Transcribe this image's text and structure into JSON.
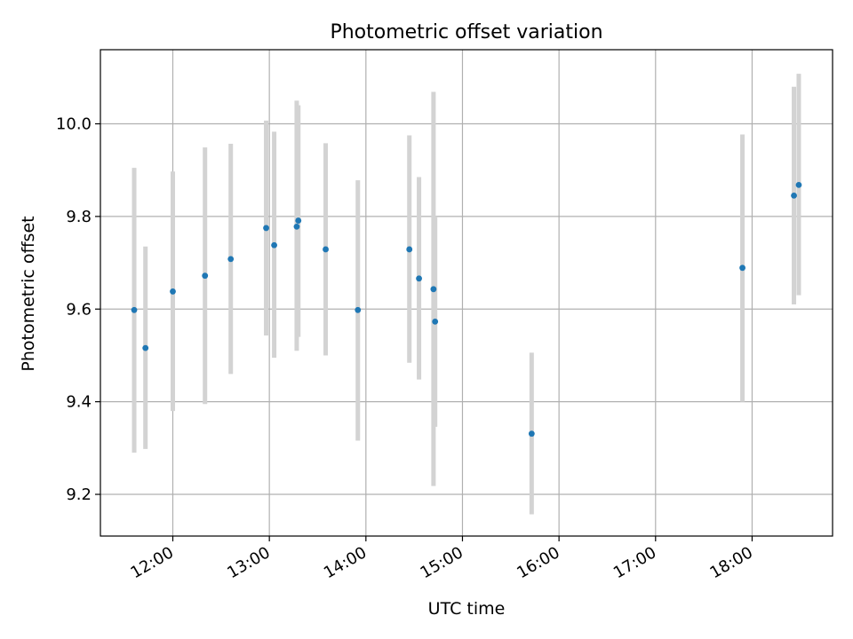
{
  "chart_data": {
    "type": "scatter",
    "title": "Photometric offset variation",
    "xlabel": "UTC time",
    "ylabel": "Photometric offset",
    "x_type": "time",
    "xlim": [
      "11:15",
      "18:50"
    ],
    "ylim": [
      9.11,
      10.16
    ],
    "xticks": [
      "12:00",
      "13:00",
      "14:00",
      "15:00",
      "16:00",
      "17:00",
      "18:00"
    ],
    "yticks": [
      "9.2",
      "9.4",
      "9.6",
      "9.8",
      "10.0"
    ],
    "grid": true,
    "colors": {
      "point": "#1f77b4",
      "errorbar": "#d3d3d3",
      "grid": "#b0b0b0"
    },
    "points": [
      {
        "time": "11:36",
        "y": 9.598,
        "ylow": 9.29,
        "yhigh": 9.905
      },
      {
        "time": "11:43",
        "y": 9.516,
        "ylow": 9.298,
        "yhigh": 9.735
      },
      {
        "time": "12:00",
        "y": 9.638,
        "ylow": 9.38,
        "yhigh": 9.897
      },
      {
        "time": "12:20",
        "y": 9.672,
        "ylow": 9.395,
        "yhigh": 9.949
      },
      {
        "time": "12:36",
        "y": 9.708,
        "ylow": 9.46,
        "yhigh": 9.957
      },
      {
        "time": "12:58",
        "y": 9.775,
        "ylow": 9.543,
        "yhigh": 10.007
      },
      {
        "time": "13:03",
        "y": 9.738,
        "ylow": 9.495,
        "yhigh": 9.983
      },
      {
        "time": "13:17",
        "y": 9.778,
        "ylow": 9.51,
        "yhigh": 10.05
      },
      {
        "time": "13:18",
        "y": 9.791,
        "ylow": 9.54,
        "yhigh": 10.04
      },
      {
        "time": "13:35",
        "y": 9.729,
        "ylow": 9.5,
        "yhigh": 9.958
      },
      {
        "time": "13:55",
        "y": 9.598,
        "ylow": 9.316,
        "yhigh": 9.878
      },
      {
        "time": "14:27",
        "y": 9.729,
        "ylow": 9.484,
        "yhigh": 9.975
      },
      {
        "time": "14:33",
        "y": 9.666,
        "ylow": 9.448,
        "yhigh": 9.885
      },
      {
        "time": "14:42",
        "y": 9.643,
        "ylow": 9.218,
        "yhigh": 10.069
      },
      {
        "time": "14:43",
        "y": 9.573,
        "ylow": 9.346,
        "yhigh": 9.8
      },
      {
        "time": "15:43",
        "y": 9.331,
        "ylow": 9.157,
        "yhigh": 9.506
      },
      {
        "time": "17:54",
        "y": 9.689,
        "ylow": 9.4,
        "yhigh": 9.977
      },
      {
        "time": "18:26",
        "y": 9.845,
        "ylow": 9.61,
        "yhigh": 10.08
      },
      {
        "time": "18:29",
        "y": 9.868,
        "ylow": 9.63,
        "yhigh": 10.108
      }
    ]
  }
}
